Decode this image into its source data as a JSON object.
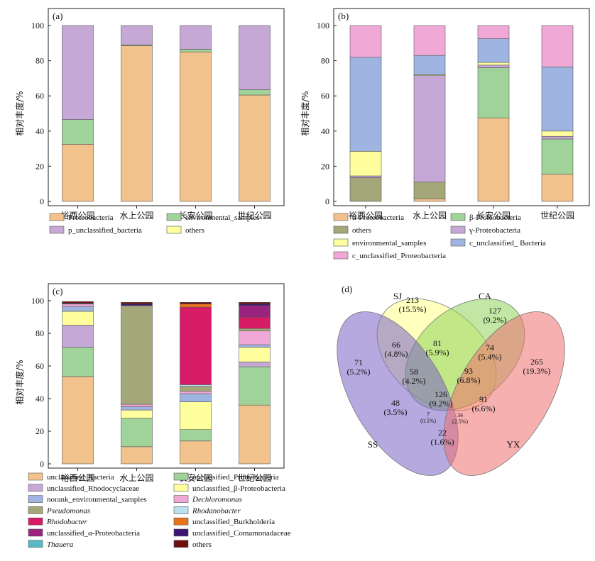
{
  "chart_data": [
    {
      "panel": "(a)",
      "type": "bar",
      "stacked": true,
      "ylabel": "相对丰度/%",
      "ylim": [
        0,
        100
      ],
      "yticks": [
        0,
        20,
        40,
        60,
        80,
        100
      ],
      "categories": [
        "裕西公园",
        "水上公园",
        "长安公园",
        "世纪公园"
      ],
      "legend_columns": 2,
      "series": [
        {
          "name": "Proteobacteria",
          "color": "#f2c28c",
          "values": [
            32.5,
            88.5,
            85.0,
            60.5
          ]
        },
        {
          "name": "environmental_samples",
          "color": "#9fd39a",
          "values": [
            14.0,
            0.5,
            1.5,
            3.0
          ]
        },
        {
          "name": "p_unclassified_bacteria",
          "color": "#c6a8d6",
          "values": [
            53.5,
            11.0,
            13.5,
            36.5
          ]
        },
        {
          "name": "others",
          "color": "#ffff9e",
          "values": [
            0,
            0,
            0,
            0
          ]
        }
      ]
    },
    {
      "panel": "(b)",
      "type": "bar",
      "stacked": true,
      "ylabel": "相对丰度/%",
      "ylim": [
        0,
        100
      ],
      "yticks": [
        0,
        20,
        40,
        60,
        80,
        100
      ],
      "categories": [
        "裕西公园",
        "水上公园",
        "长安公园",
        "世纪公园"
      ],
      "legend_columns": 2,
      "series": [
        {
          "name": "α-Proteobacteria",
          "color": "#f2c28c",
          "values": [
            0,
            1.5,
            47.5,
            15.5
          ]
        },
        {
          "name": "β-Proteobacteria",
          "color": "#9fd39a",
          "values": [
            0,
            0,
            28.5,
            20.0
          ]
        },
        {
          "name": "others",
          "color": "#a3a77a",
          "values": [
            13.5,
            9.5,
            0,
            0
          ]
        },
        {
          "name": "γ-Proteobacteria",
          "color": "#c6a8d6",
          "values": [
            1.0,
            60.5,
            1.5,
            1.5
          ]
        },
        {
          "name": "environmental_samples",
          "color": "#ffff9e",
          "values": [
            14.0,
            0.5,
            1.5,
            3.0
          ]
        },
        {
          "name": "c_unclassified_ Bacteria",
          "color": "#9fb4e0",
          "values": [
            53.5,
            11.0,
            13.5,
            36.5
          ]
        },
        {
          "name": "c_unclassified_Proteobacteria",
          "color": "#f0a9d6",
          "values": [
            18.0,
            17.0,
            7.5,
            23.5
          ]
        }
      ]
    },
    {
      "panel": "(c)",
      "type": "bar",
      "stacked": true,
      "ylabel": "相对丰度/%",
      "ylim": [
        0,
        100
      ],
      "yticks": [
        0,
        20,
        40,
        60,
        80,
        100
      ],
      "categories": [
        "裕西公园",
        "水上公园",
        "长安公园",
        "世纪公园"
      ],
      "legend_columns": 2,
      "series": [
        {
          "name": "unclassified_Bacteria",
          "italic": false,
          "color": "#f2c28c",
          "values": [
            53.5,
            10.5,
            14.0,
            36.0
          ]
        },
        {
          "name": "unclassified_Proteobacteria",
          "italic": false,
          "color": "#9fd39a",
          "values": [
            18.0,
            17.5,
            7.0,
            23.5
          ]
        },
        {
          "name": "unclassified_Rhodocyclaceae",
          "italic": false,
          "color": "#c6a8d6",
          "values": [
            13.5,
            0,
            0,
            3.0
          ]
        },
        {
          "name": "unclassified_β-Proteobacteria",
          "italic": false,
          "color": "#ffff9e",
          "values": [
            8.5,
            5.0,
            17.0,
            9.0
          ]
        },
        {
          "name": "norank_environmental_samples",
          "italic": false,
          "color": "#9fb4e0",
          "values": [
            3.0,
            2.0,
            5.0,
            1.5
          ]
        },
        {
          "name": "Dechloromonas",
          "italic": true,
          "color": "#f0a9d6",
          "values": [
            1.5,
            1.5,
            1.5,
            8.5
          ]
        },
        {
          "name": "Pseudomonas",
          "italic": true,
          "color": "#a3a77a",
          "values": [
            0,
            60.5,
            3.0,
            1.5
          ]
        },
        {
          "name": "Rhodanobacter",
          "italic": true,
          "color": "#b9e2ee",
          "values": [
            0,
            0,
            1.0,
            0
          ]
        },
        {
          "name": "Rhodobacter",
          "italic": true,
          "color": "#d81b66",
          "values": [
            0,
            0,
            47.5,
            7.0
          ]
        },
        {
          "name": "unclassified_Burkholderia",
          "italic": false,
          "color": "#e8731c",
          "values": [
            0,
            0,
            2.0,
            0
          ]
        },
        {
          "name": "unclassified_α-Proteobacteria",
          "italic": false,
          "color": "#99237f",
          "values": [
            0,
            0,
            0,
            7.0
          ]
        },
        {
          "name": "unclassified_Comamonadaceae",
          "italic": false,
          "color": "#3a1672",
          "values": [
            0.5,
            1.0,
            0,
            1.0
          ]
        },
        {
          "name": "Thauera",
          "italic": true,
          "color": "#58b9c4",
          "values": [
            0,
            0,
            0,
            0
          ]
        },
        {
          "name": "others",
          "italic": false,
          "color": "#6e1010",
          "values": [
            1.0,
            1.0,
            1.0,
            1.0
          ]
        }
      ]
    }
  ],
  "venn": {
    "panel": "(d)",
    "sets": [
      {
        "name": "SJ",
        "color": "#ffff88",
        "label_color": "#6b6b1a"
      },
      {
        "name": "CA",
        "color": "#8fd35a",
        "label_color": "#2e7d32"
      },
      {
        "name": "SS",
        "color": "#7a62c6",
        "label_color": "#3c3c8c"
      },
      {
        "name": "YX",
        "color": "#f07070",
        "label_color": "#c62828"
      }
    ],
    "regions": [
      {
        "sets": "SS",
        "count": "71",
        "pct": "(5.2%)"
      },
      {
        "sets": "SJ",
        "count": "213",
        "pct": "(15.5%)"
      },
      {
        "sets": "CA",
        "count": "127",
        "pct": "(9.2%)"
      },
      {
        "sets": "YX",
        "count": "265",
        "pct": "(19.3%)"
      },
      {
        "sets": "SS∩SJ",
        "count": "66",
        "pct": "(4.8%)"
      },
      {
        "sets": "SJ∩CA",
        "count": "81",
        "pct": "(5.9%)"
      },
      {
        "sets": "CA∩YX",
        "count": "74",
        "pct": "(5.4%)"
      },
      {
        "sets": "SS∩SJ∩CA",
        "count": "58",
        "pct": "(4.2%)"
      },
      {
        "sets": "SJ∩CA∩YX",
        "count": "93",
        "pct": "(6.8%)"
      },
      {
        "sets": "all",
        "count": "126",
        "pct": "(9.2%)"
      },
      {
        "sets": "SS∩CA",
        "count": "48",
        "pct": "(3.5%)"
      },
      {
        "sets": "SJ∩YX",
        "count": "91",
        "pct": "(6.6%)"
      },
      {
        "sets": "SS∩CA∩YX",
        "count": "7",
        "pct": "(0.5%)"
      },
      {
        "sets": "SS∩SJ∩YX",
        "count": "34",
        "pct": "(2.5%)"
      },
      {
        "sets": "SS∩YX",
        "count": "22",
        "pct": "(1.6%)"
      }
    ]
  }
}
